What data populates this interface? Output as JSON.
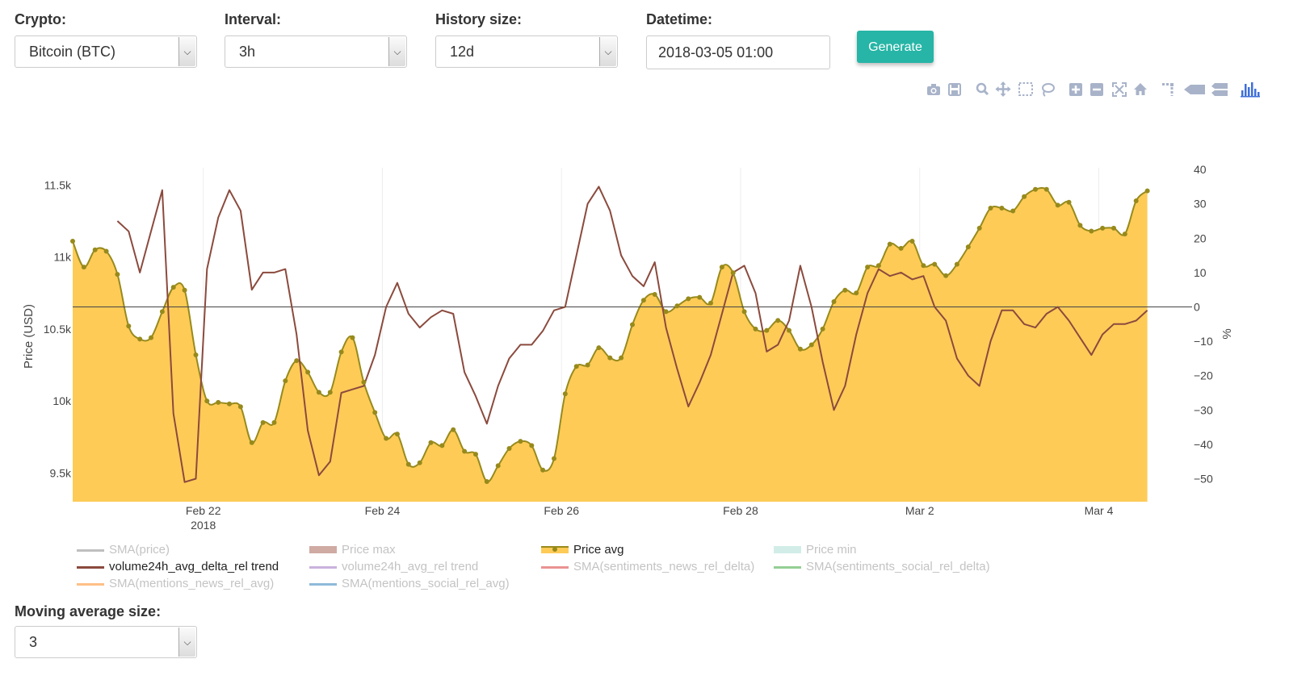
{
  "controls": {
    "crypto": {
      "label": "Crypto:",
      "value": "Bitcoin (BTC)"
    },
    "interval": {
      "label": "Interval:",
      "value": "3h"
    },
    "history": {
      "label": "History size:",
      "value": "12d"
    },
    "datetime": {
      "label": "Datetime:",
      "value": "2018-03-05 01:00"
    },
    "generate_label": "Generate",
    "moving_average": {
      "label": "Moving average size:",
      "value": "3"
    }
  },
  "modebar_icons": [
    "camera-icon",
    "save-icon",
    "zoom-icon",
    "pan-icon",
    "box-select-icon",
    "lasso-icon",
    "zoom-in-icon",
    "zoom-out-icon",
    "autoscale-icon",
    "reset-axes-icon",
    "spike-lines-icon",
    "hover-closest-icon",
    "hover-compare-icon",
    "plotly-logo-icon"
  ],
  "colors": {
    "price_fill": "#fecb57",
    "price_line": "#978a1c",
    "volume_line": "#8b4a3d",
    "button": "#26b5a6",
    "modebar": "#a8b3c9",
    "plotly_logo": "#3f6fd8"
  },
  "chart_data": {
    "type": "line",
    "x_range": [
      "2018-02-20 13:00",
      "2018-03-05 01:00"
    ],
    "x_ticks": [
      {
        "date": "2018-02-22",
        "label": "Feb 22",
        "sub": "2018"
      },
      {
        "date": "2018-02-24",
        "label": "Feb 24",
        "sub": ""
      },
      {
        "date": "2018-02-26",
        "label": "Feb 26",
        "sub": ""
      },
      {
        "date": "2018-02-28",
        "label": "Feb 28",
        "sub": ""
      },
      {
        "date": "2018-03-02",
        "label": "Mar 2",
        "sub": ""
      },
      {
        "date": "2018-03-04",
        "label": "Mar 4",
        "sub": ""
      }
    ],
    "y_left": {
      "label": "Price (USD)",
      "range": [
        9300,
        11620
      ],
      "ticks": [
        9500,
        10000,
        10500,
        11000,
        11500
      ],
      "tick_labels": [
        "9.5k",
        "10k",
        "10.5k",
        "11k",
        "11.5k"
      ]
    },
    "y_right": {
      "label": "%",
      "range": [
        -56.7,
        40.5
      ],
      "ticks": [
        -50,
        -40,
        -30,
        -20,
        -10,
        0,
        10,
        20,
        30,
        40
      ],
      "tick_labels": [
        "−50",
        "−40",
        "−30",
        "−20",
        "−10",
        "0",
        "10",
        "20",
        "30",
        "40"
      ]
    },
    "series": [
      {
        "name": "Price avg",
        "axis": "left",
        "start": "2018-02-20 13:00",
        "step_hours": 3,
        "values": [
          11110,
          10930,
          11050,
          11040,
          10880,
          10520,
          10430,
          10440,
          10620,
          10790,
          10770,
          10320,
          10000,
          9990,
          9980,
          9960,
          9710,
          9850,
          9850,
          10140,
          10280,
          10200,
          10060,
          10060,
          10340,
          10440,
          10130,
          9920,
          9740,
          9770,
          9560,
          9570,
          9710,
          9690,
          9800,
          9650,
          9630,
          9440,
          9550,
          9670,
          9720,
          9690,
          9520,
          9600,
          10050,
          10240,
          10250,
          10370,
          10300,
          10300,
          10530,
          10700,
          10740,
          10620,
          10660,
          10710,
          10720,
          10680,
          10930,
          10890,
          10620,
          10500,
          10490,
          10560,
          10490,
          10360,
          10390,
          10500,
          10690,
          10770,
          10750,
          10930,
          10940,
          11090,
          11060,
          11110,
          10940,
          10950,
          10870,
          10950,
          11070,
          11200,
          11340,
          11340,
          11320,
          11420,
          11470,
          11470,
          11360,
          11380,
          11220,
          11180,
          11200,
          11200,
          11160,
          11390,
          11460
        ]
      },
      {
        "name": "volume24h_avg_delta_rel trend",
        "axis": "right",
        "start": "2018-02-21 01:00",
        "step_hours": 3,
        "values": [
          25,
          22,
          10,
          22,
          34,
          -31,
          -51,
          -50,
          11,
          26,
          34,
          28,
          5,
          10,
          10,
          11,
          -8,
          -36,
          -49,
          -45,
          -25,
          -24,
          -23,
          -14,
          0,
          7,
          -2,
          -6,
          -3,
          -1,
          -2,
          -19,
          -26,
          -34,
          -23,
          -15,
          -11,
          -11,
          -7,
          -1,
          0,
          15,
          30,
          35,
          28,
          15,
          9,
          6,
          13,
          -6,
          -18,
          -29,
          -22,
          -14,
          -2,
          10,
          12,
          4,
          -13,
          -11,
          -4,
          12,
          0,
          -16,
          -30,
          -23,
          -8,
          4,
          11,
          9,
          10,
          8,
          9,
          0,
          -4,
          -15,
          -20,
          -23,
          -10,
          -1,
          -1,
          -5,
          -6,
          -2,
          0,
          -4,
          -9,
          -14,
          -8,
          -5,
          -5,
          -4,
          -1
        ]
      }
    ],
    "legend": [
      {
        "name": "SMA(price)",
        "color": "#7f7f7f",
        "active": false
      },
      {
        "name": "Price max",
        "color": "#a05a4a",
        "active": false,
        "area": true
      },
      {
        "name": "Price avg",
        "color": "#978a1c",
        "active": true,
        "area": true
      },
      {
        "name": "Price min",
        "color": "#a6dcd2",
        "active": false,
        "area": true
      },
      {
        "name": "volume24h_avg_delta_rel trend",
        "color": "#8b4a3d",
        "active": true
      },
      {
        "name": "volume24h_avg_rel trend",
        "color": "#9467bd",
        "active": false
      },
      {
        "name": "SMA(sentiments_news_rel_delta)",
        "color": "#d62728",
        "active": false
      },
      {
        "name": "SMA(sentiments_social_rel_delta)",
        "color": "#2ca02c",
        "active": false
      },
      {
        "name": "SMA(mentions_news_rel_avg)",
        "color": "#ff7f0e",
        "active": false
      },
      {
        "name": "SMA(mentions_social_rel_avg)",
        "color": "#1f77b4",
        "active": false
      }
    ]
  }
}
